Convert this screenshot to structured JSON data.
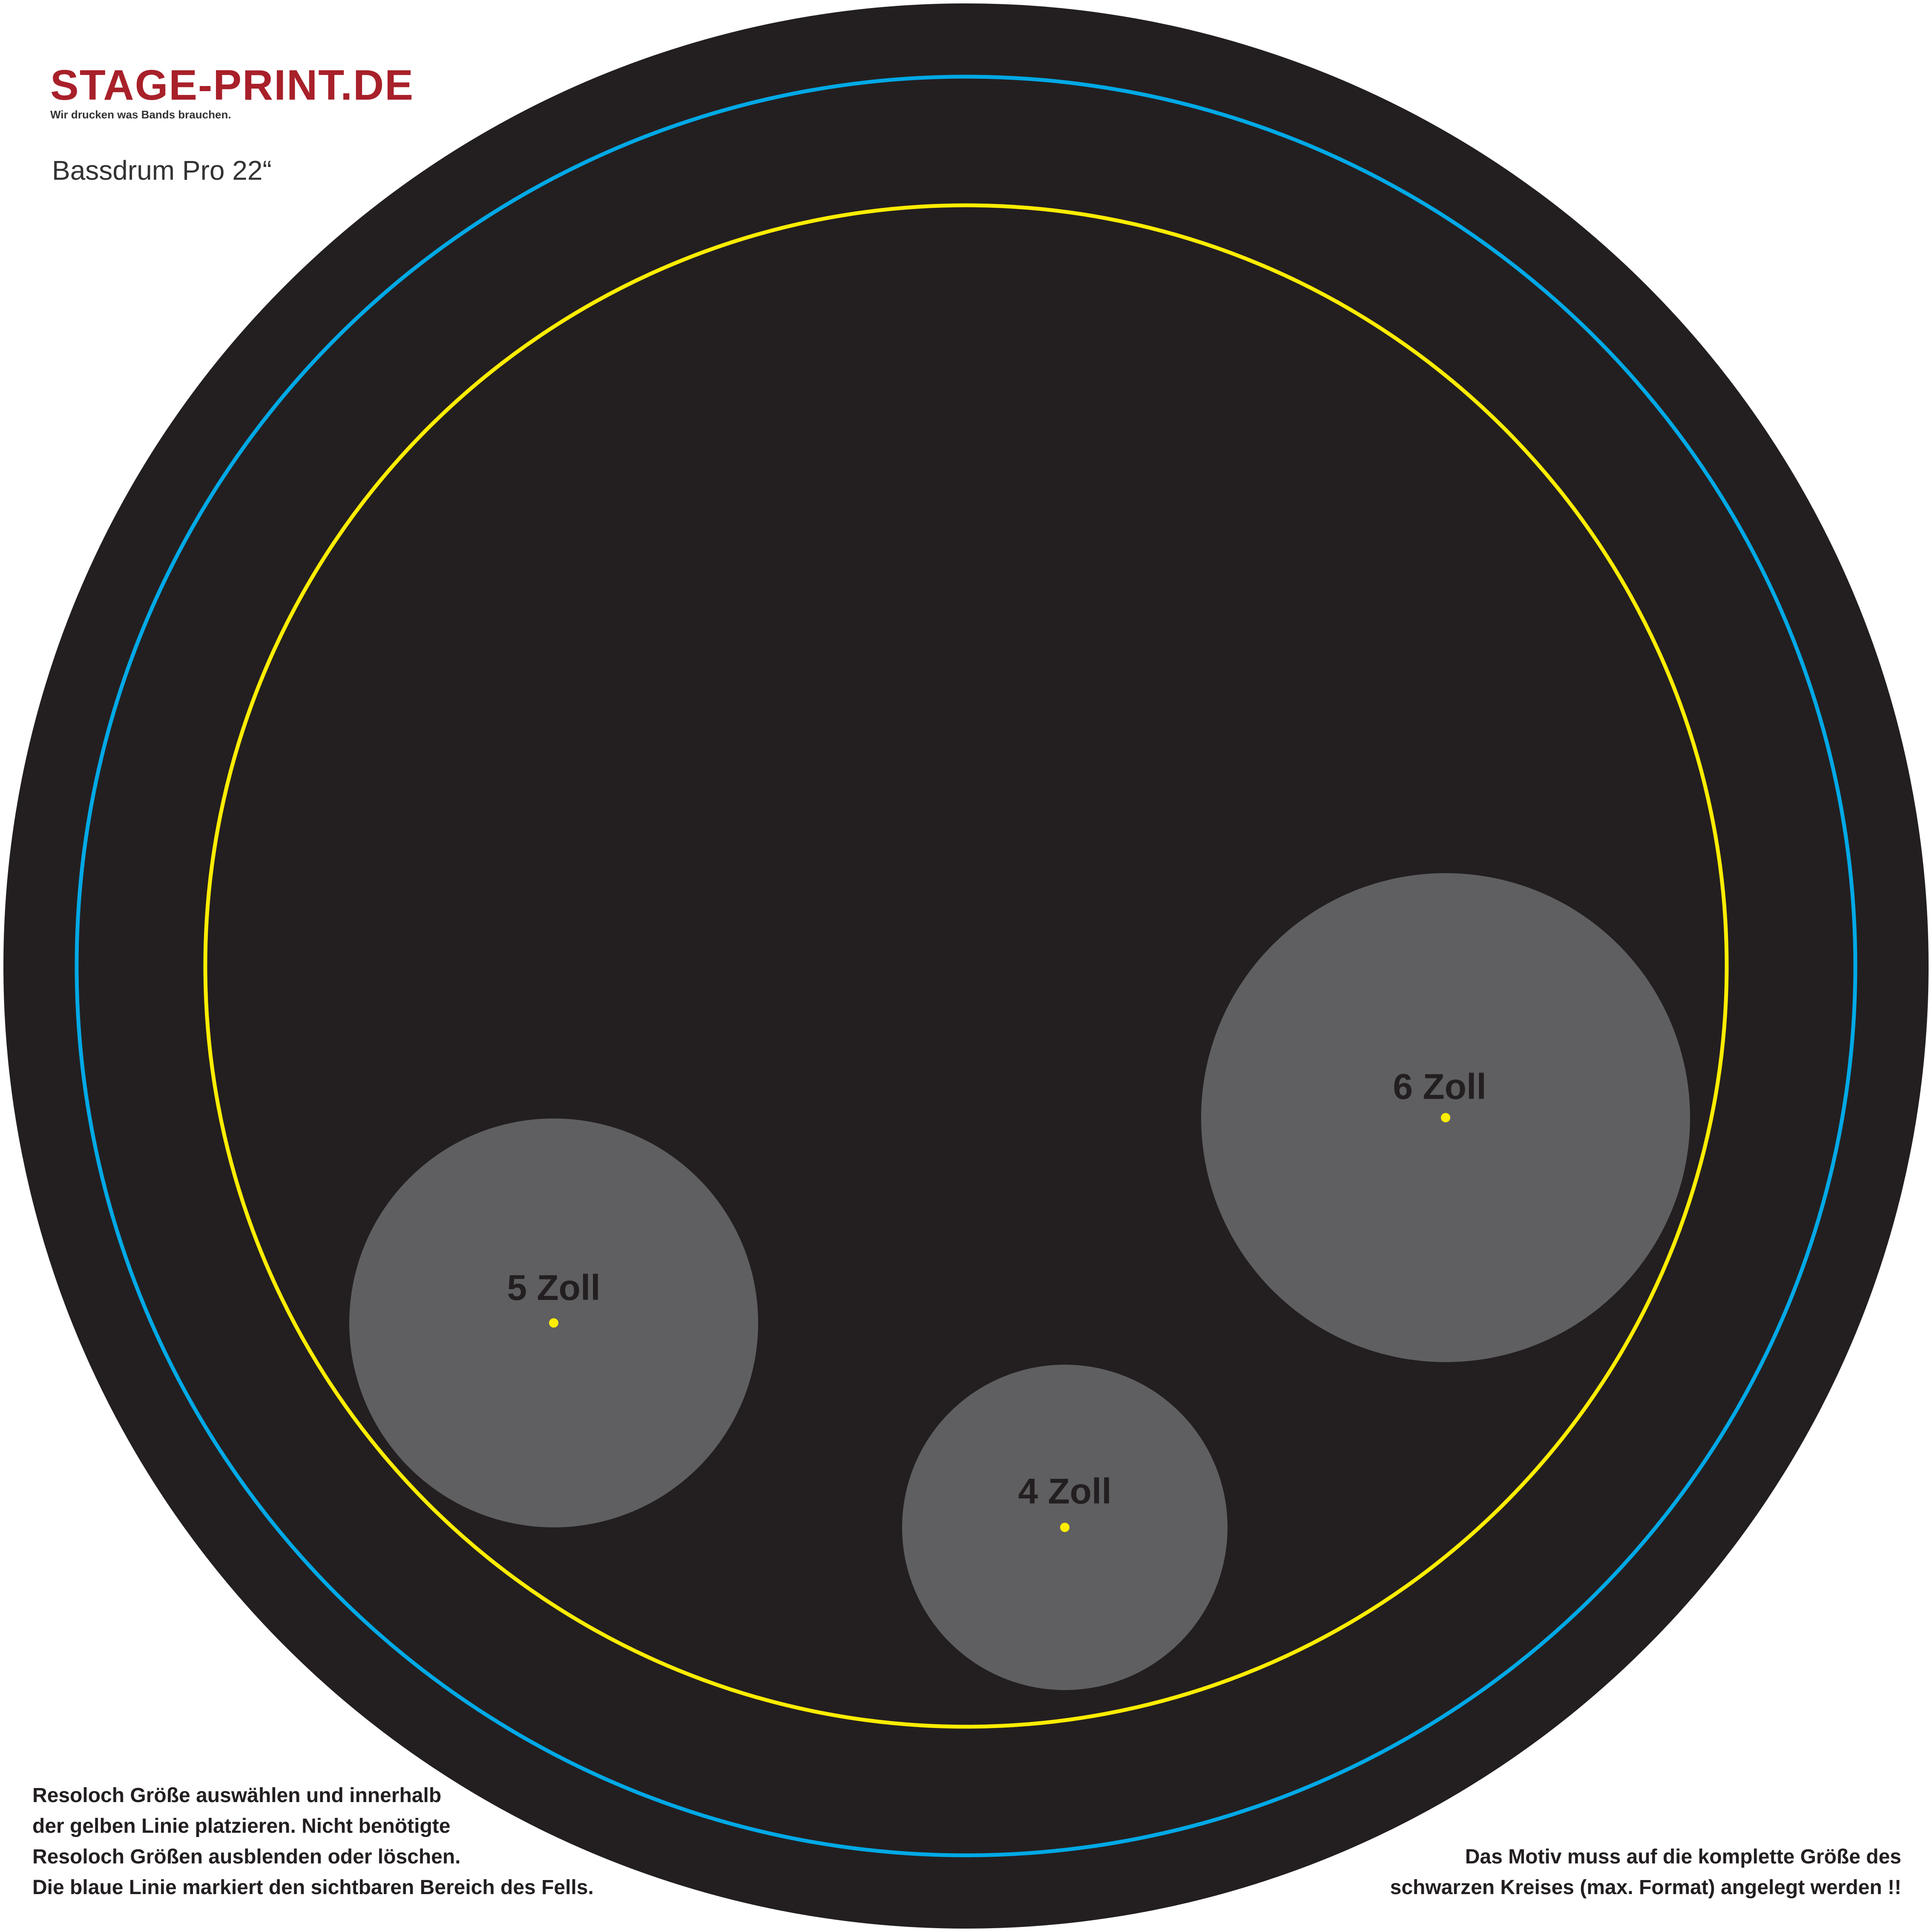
{
  "brand": {
    "logo_text": "STAGE-PRINT.DE",
    "tagline": "Wir drucken was Bands brauchen."
  },
  "title": "Bassdrum Pro 22“",
  "holes": [
    {
      "id": "5",
      "label": "5 Zoll"
    },
    {
      "id": "4",
      "label": "4 Zoll"
    },
    {
      "id": "6",
      "label": "6 Zoll"
    }
  ],
  "instructions_left": [
    "Resoloch Größe auswählen und innerhalb",
    "der gelben Linie platzieren. Nicht benötigte",
    "Resoloch Größen ausblenden oder löschen.",
    "Die blaue Linie markiert den sichtbaren Bereich des Fells."
  ],
  "instructions_right": [
    "Das Motiv muss auf die komplette Größe des",
    "schwarzen Kreises (max. Format) angelegt werden !!"
  ],
  "colors": {
    "head": "#231f20",
    "visible_area_line": "#00a9e6",
    "placement_line": "#ffed00",
    "hole_fill": "#5f5f61",
    "hole_center": "#ffed00",
    "logo": "#a8202a"
  }
}
